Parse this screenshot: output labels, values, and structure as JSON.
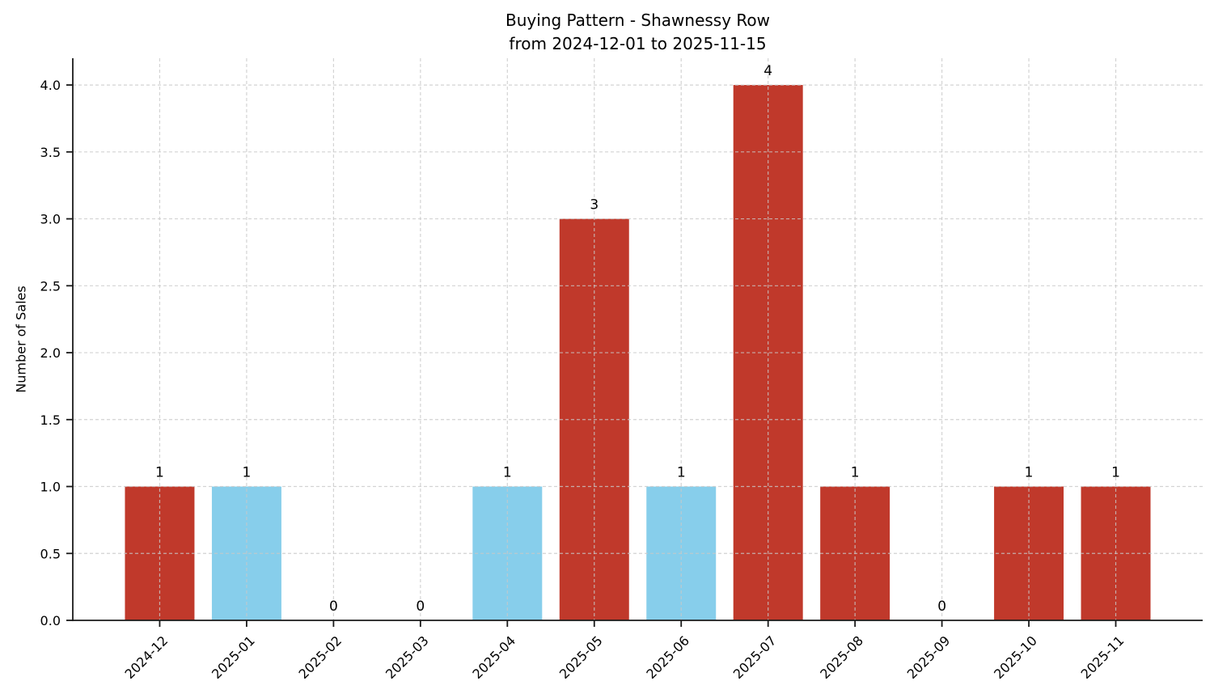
{
  "chart_data": {
    "type": "bar",
    "title": "Buying Pattern - Shawnessy Row",
    "subtitle": "from 2024-12-01 to 2025-11-15",
    "xlabel": "",
    "ylabel": "Number of Sales",
    "categories": [
      "2024-12",
      "2025-01",
      "2025-02",
      "2025-03",
      "2025-04",
      "2025-05",
      "2025-06",
      "2025-07",
      "2025-08",
      "2025-09",
      "2025-10",
      "2025-11"
    ],
    "values": [
      1,
      1,
      0,
      0,
      1,
      3,
      1,
      4,
      1,
      0,
      1,
      1
    ],
    "value_labels": [
      "1",
      "1",
      "0",
      "0",
      "1",
      "3",
      "1",
      "4",
      "1",
      "0",
      "1",
      "1"
    ],
    "bar_colors": [
      "#c0392b",
      "#87ceeb",
      null,
      null,
      "#87ceeb",
      "#c0392b",
      "#87ceeb",
      "#c0392b",
      "#c0392b",
      null,
      "#c0392b",
      "#c0392b"
    ],
    "ylim": [
      0,
      4.2
    ],
    "yticks": [
      0,
      0.5,
      1,
      1.5,
      2,
      2.5,
      3,
      3.5,
      4
    ],
    "ytick_labels": [
      "0.0",
      "0.5",
      "1.0",
      "1.5",
      "2.0",
      "2.5",
      "3.0",
      "3.5",
      "4.0"
    ],
    "xtick_rotation": -45,
    "bar_width_fraction": 0.8,
    "grid": "both",
    "grid_style": "dashed",
    "legend": "none",
    "colors": {
      "red_bar": "#c0392b",
      "blue_bar": "#87ceeb",
      "grid": "#c9c9c9",
      "axis": "#1a1a1a",
      "text": "#000000",
      "background": "#ffffff"
    }
  }
}
